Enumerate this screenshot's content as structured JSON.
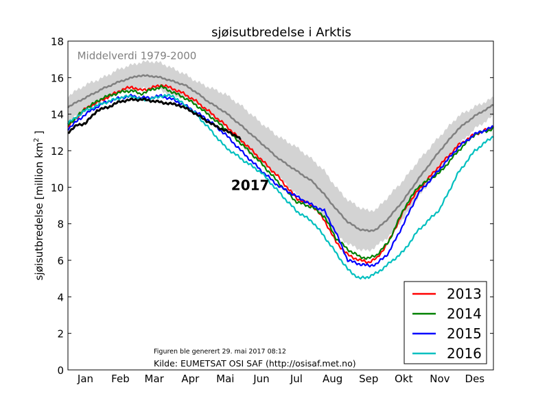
{
  "chart_data": {
    "type": "line",
    "title": "sjøisutbredelse i Arktis",
    "ylabel": "sjøisutbredelse [million km",
    "ylabel_sup": "2",
    "ylabel_end": " ]",
    "xlabel": "",
    "xlim": [
      0,
      365
    ],
    "ylim": [
      0,
      18
    ],
    "yticks": [
      0,
      2,
      4,
      6,
      8,
      10,
      12,
      14,
      16,
      18
    ],
    "months": [
      {
        "label": "Jan",
        "day": 15
      },
      {
        "label": "Feb",
        "day": 45
      },
      {
        "label": "Mar",
        "day": 74
      },
      {
        "label": "Apr",
        "day": 105
      },
      {
        "label": "Mai",
        "day": 135
      },
      {
        "label": "Jun",
        "day": 166
      },
      {
        "label": "Jul",
        "day": 196
      },
      {
        "label": "Aug",
        "day": 227
      },
      {
        "label": "Sep",
        "day": 258
      },
      {
        "label": "Okt",
        "day": 288
      },
      {
        "label": "Nov",
        "day": 319
      },
      {
        "label": "Des",
        "day": 349
      }
    ],
    "mean_label": "Middelverdi 1979-2000",
    "mean_color": "#808080",
    "band_color": "#d3d3d3",
    "mean": {
      "x": [
        0,
        15,
        30,
        45,
        60,
        70,
        80,
        90,
        100,
        110,
        120,
        135,
        150,
        166,
        180,
        196,
        210,
        220,
        230,
        240,
        250,
        258,
        265,
        275,
        288,
        300,
        319,
        335,
        349,
        365
      ],
      "y": [
        14.4,
        14.9,
        15.4,
        15.8,
        16.1,
        16.1,
        16.0,
        15.8,
        15.6,
        15.2,
        14.7,
        14.1,
        13.3,
        12.4,
        11.6,
        10.9,
        10.3,
        9.6,
        8.8,
        8.1,
        7.7,
        7.6,
        7.7,
        8.3,
        9.3,
        10.4,
        12.0,
        13.2,
        13.9,
        14.5
      ]
    },
    "band": {
      "x": [
        0,
        15,
        30,
        45,
        60,
        70,
        80,
        90,
        100,
        110,
        120,
        135,
        150,
        166,
        180,
        196,
        210,
        220,
        230,
        240,
        250,
        258,
        265,
        275,
        288,
        300,
        319,
        335,
        349,
        365
      ],
      "upper": [
        15.0,
        15.6,
        16.0,
        16.5,
        16.8,
        16.9,
        16.8,
        16.5,
        16.2,
        15.8,
        15.5,
        15.1,
        14.4,
        13.5,
        12.8,
        12.2,
        11.5,
        10.9,
        10.0,
        9.3,
        8.9,
        8.7,
        8.8,
        9.5,
        10.4,
        11.4,
        12.8,
        13.9,
        14.4,
        14.9
      ],
      "lower": [
        13.6,
        14.2,
        14.8,
        15.2,
        15.4,
        15.4,
        15.3,
        15.0,
        14.9,
        14.6,
        14.0,
        13.3,
        12.2,
        11.3,
        10.6,
        9.6,
        9.0,
        8.3,
        7.4,
        6.9,
        6.6,
        6.5,
        6.8,
        7.3,
        8.3,
        9.4,
        11.0,
        12.3,
        13.2,
        13.9
      ]
    },
    "series": [
      {
        "name": "2013",
        "color": "#ff0000",
        "x": [
          0,
          15,
          30,
          45,
          55,
          62,
          70,
          80,
          90,
          100,
          110,
          120,
          135,
          150,
          166,
          180,
          196,
          210,
          220,
          230,
          240,
          250,
          258,
          265,
          275,
          288,
          300,
          319,
          335,
          349,
          365
        ],
        "y": [
          13.3,
          14.3,
          14.8,
          15.3,
          15.5,
          15.3,
          15.4,
          15.6,
          15.4,
          15.1,
          14.7,
          14.2,
          13.4,
          12.5,
          11.5,
          10.6,
          9.4,
          9.0,
          8.2,
          7.0,
          6.3,
          6.0,
          5.9,
          6.1,
          7.0,
          8.7,
          9.8,
          11.2,
          12.3,
          12.9,
          13.3
        ]
      },
      {
        "name": "2014",
        "color": "#008000",
        "x": [
          0,
          15,
          30,
          45,
          55,
          62,
          70,
          80,
          90,
          100,
          110,
          120,
          135,
          150,
          166,
          180,
          196,
          210,
          220,
          230,
          240,
          250,
          258,
          265,
          275,
          288,
          300,
          319,
          335,
          349,
          365
        ],
        "y": [
          13.4,
          14.3,
          14.9,
          15.2,
          15.3,
          15.1,
          15.3,
          15.5,
          15.2,
          14.9,
          14.5,
          14.0,
          13.2,
          12.3,
          11.3,
          10.3,
          9.2,
          8.9,
          8.4,
          7.2,
          6.6,
          6.2,
          6.1,
          6.3,
          7.0,
          8.8,
          10.0,
          10.8,
          12.0,
          12.9,
          13.2
        ]
      },
      {
        "name": "2015",
        "color": "#0000ff",
        "x": [
          0,
          15,
          30,
          45,
          55,
          62,
          70,
          80,
          90,
          100,
          110,
          120,
          135,
          150,
          166,
          180,
          196,
          210,
          220,
          230,
          240,
          250,
          258,
          265,
          275,
          288,
          300,
          319,
          335,
          349,
          365
        ],
        "y": [
          13.2,
          14.0,
          14.6,
          14.9,
          15.0,
          14.9,
          14.9,
          15.0,
          14.8,
          14.5,
          14.1,
          13.7,
          12.9,
          11.9,
          10.9,
          10.1,
          9.5,
          9.0,
          8.7,
          7.5,
          6.0,
          5.8,
          5.7,
          5.8,
          6.4,
          8.0,
          9.6,
          11.0,
          12.2,
          12.9,
          13.3
        ]
      },
      {
        "name": "2016",
        "color": "#00bfbf",
        "x": [
          0,
          15,
          30,
          45,
          55,
          62,
          70,
          80,
          90,
          100,
          110,
          120,
          135,
          150,
          166,
          180,
          196,
          210,
          220,
          230,
          240,
          250,
          258,
          265,
          275,
          288,
          300,
          319,
          335,
          349,
          365
        ],
        "y": [
          13.5,
          14.2,
          14.6,
          14.9,
          15.0,
          14.8,
          14.8,
          15.0,
          15.0,
          14.5,
          14.0,
          13.3,
          12.2,
          11.5,
          10.8,
          9.8,
          8.7,
          8.1,
          7.3,
          6.4,
          5.5,
          5.0,
          5.1,
          5.3,
          5.8,
          6.5,
          7.6,
          8.8,
          10.8,
          12.0,
          12.8
        ]
      }
    ],
    "current_year": {
      "name": "2017",
      "label": "2017",
      "color": "#000000",
      "x": [
        0,
        8,
        15,
        25,
        35,
        45,
        55,
        65,
        75,
        85,
        95,
        105,
        115,
        125,
        135,
        145,
        148
      ],
      "y": [
        13.0,
        13.4,
        13.5,
        14.2,
        14.4,
        14.7,
        14.8,
        14.8,
        14.7,
        14.6,
        14.5,
        14.2,
        13.8,
        13.4,
        13.1,
        12.8,
        12.6
      ]
    },
    "current_label_pos": {
      "x": 140,
      "y": 10.1
    },
    "mean_label_pos": {
      "x": 8,
      "y": 17.2
    },
    "legend_placement": "bottom-right",
    "grid": false,
    "footnote": "Figuren ble generert 29. mai 2017 08:12",
    "source": "Kilde: EUMETSAT OSI SAF (http://osisaf.met.no)"
  }
}
